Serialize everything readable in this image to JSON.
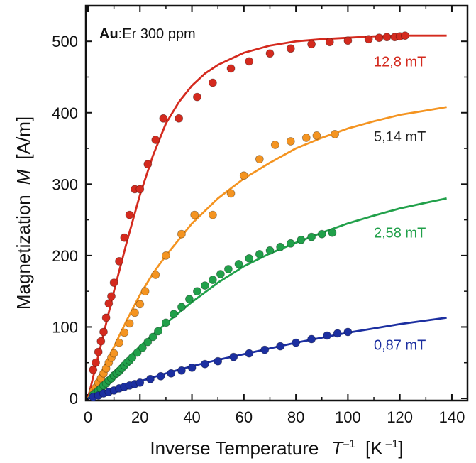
{
  "chart_data": {
    "type": "scatter",
    "title": "",
    "annotation": {
      "bold": "Au",
      "rest": ":Er 300 ppm"
    },
    "xlabel": {
      "main": "Inverse Temperature",
      "symbol": "T",
      "sup": "–1",
      "unit_open": "[K",
      "unit_sup": "–1",
      "unit_close": "]"
    },
    "ylabel": {
      "main": "Magnetization",
      "symbol": "M",
      "unit": "[A/m]"
    },
    "xlim": [
      0,
      145
    ],
    "ylim": [
      0,
      540
    ],
    "xticks": [
      0,
      20,
      40,
      60,
      80,
      100,
      120,
      140
    ],
    "yticks": [
      0,
      100,
      200,
      300,
      400,
      500
    ],
    "grid": false,
    "series": [
      {
        "name": "12,8 mT",
        "color": "#d42a1e",
        "label_value": 500,
        "label_x": 130,
        "label_y": 465,
        "fit": {
          "x": [
            0,
            5,
            10,
            15,
            20,
            25,
            30,
            35,
            40,
            45,
            50,
            60,
            70,
            80,
            90,
            100,
            110,
            120,
            130,
            138
          ],
          "y": [
            0,
            75,
            150,
            220,
            285,
            340,
            385,
            415,
            438,
            455,
            467,
            484,
            494,
            500,
            503,
            505,
            507,
            508,
            508,
            508
          ]
        },
        "points": {
          "x": [
            2,
            3,
            4,
            5,
            6,
            7,
            8,
            9,
            10,
            12,
            14,
            16,
            18,
            20,
            23,
            26,
            29,
            35,
            42,
            48,
            55,
            62,
            70,
            78,
            86,
            93,
            100,
            108,
            112,
            115,
            118,
            120,
            122
          ],
          "y": [
            40,
            50,
            65,
            80,
            93,
            113,
            133,
            143,
            162,
            192,
            225,
            257,
            293,
            293,
            328,
            362,
            392,
            392,
            422,
            442,
            462,
            472,
            483,
            490,
            496,
            499,
            501,
            503,
            505,
            506,
            506,
            507,
            508
          ]
        }
      },
      {
        "name": "5,14 mT",
        "color": "#f49421",
        "label_value": 400,
        "label_x": 130,
        "label_y": 360,
        "fit": {
          "x": [
            0,
            5,
            10,
            15,
            20,
            25,
            30,
            40,
            50,
            60,
            70,
            80,
            90,
            100,
            110,
            120,
            130,
            138
          ],
          "y": [
            0,
            35,
            72,
            110,
            145,
            175,
            200,
            245,
            280,
            308,
            330,
            350,
            365,
            378,
            388,
            397,
            403,
            408
          ]
        },
        "points": {
          "x": [
            2,
            3,
            4,
            5,
            6,
            7,
            8,
            9,
            10,
            12,
            14,
            16,
            18,
            20,
            22,
            26,
            30,
            36,
            41,
            48,
            55,
            60,
            66,
            72,
            78,
            84,
            88,
            95
          ],
          "y": [
            10,
            15,
            22,
            28,
            35,
            42,
            50,
            57,
            63,
            78,
            92,
            105,
            120,
            132,
            150,
            173,
            200,
            230,
            257,
            257,
            287,
            312,
            335,
            355,
            360,
            365,
            368,
            370
          ]
        }
      },
      {
        "name": "2,58 mT",
        "color": "#21a04a",
        "label_value": 260,
        "label_x": 130,
        "label_y": 225,
        "fit": {
          "x": [
            0,
            5,
            10,
            15,
            20,
            30,
            40,
            50,
            60,
            70,
            80,
            90,
            100,
            110,
            120,
            130,
            138
          ],
          "y": [
            0,
            18,
            37,
            55,
            73,
            105,
            135,
            162,
            185,
            203,
            218,
            232,
            245,
            256,
            266,
            274,
            280
          ]
        },
        "points": {
          "x": [
            2,
            3,
            4,
            5,
            6,
            7,
            8,
            9,
            10,
            11,
            12,
            13,
            14,
            15,
            16,
            17,
            19,
            21,
            23,
            25,
            27,
            30,
            33,
            36,
            39,
            42,
            45,
            48,
            51,
            54,
            58,
            62,
            66,
            70,
            74,
            78,
            82,
            86,
            90,
            94
          ],
          "y": [
            5,
            8,
            11,
            14,
            18,
            21,
            25,
            28,
            32,
            35,
            38,
            42,
            46,
            50,
            53,
            57,
            64,
            71,
            79,
            86,
            94,
            106,
            118,
            128,
            139,
            150,
            158,
            166,
            174,
            181,
            188,
            196,
            202,
            207,
            212,
            217,
            222,
            226,
            230,
            232
          ]
        }
      },
      {
        "name": "0,87 mT",
        "color": "#1c2fa0",
        "label_value": 60,
        "label_x": 130,
        "label_y": 68,
        "fit": {
          "x": [
            0,
            10,
            20,
            30,
            40,
            50,
            60,
            70,
            80,
            90,
            100,
            110,
            120,
            130,
            138
          ],
          "y": [
            0,
            12,
            24,
            35,
            45,
            54,
            62,
            70,
            78,
            85,
            92,
            98,
            104,
            109,
            113
          ]
        },
        "points": {
          "x": [
            2,
            4,
            6,
            8,
            10,
            12,
            14,
            16,
            18,
            20,
            24,
            28,
            32,
            36,
            40,
            45,
            50,
            56,
            62,
            68,
            74,
            80,
            86,
            92,
            96,
            100
          ],
          "y": [
            2,
            4,
            7,
            9,
            11,
            14,
            16,
            18,
            20,
            22,
            27,
            31,
            35,
            39,
            43,
            48,
            52,
            58,
            63,
            68,
            73,
            78,
            83,
            88,
            91,
            93
          ]
        }
      }
    ]
  }
}
